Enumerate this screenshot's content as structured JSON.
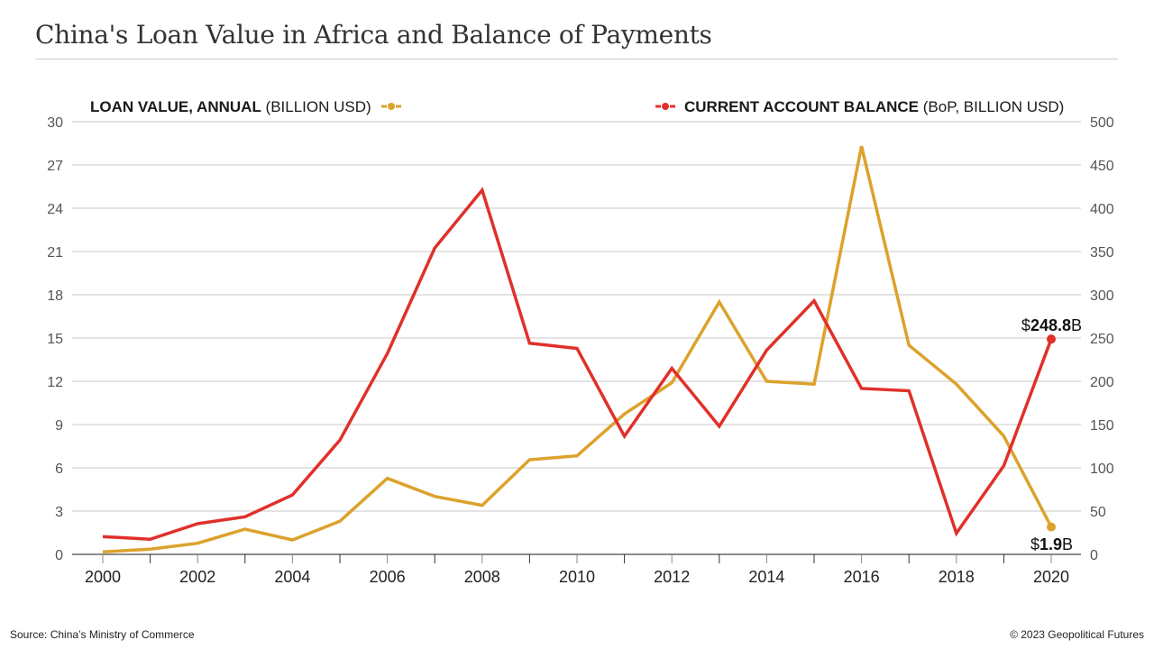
{
  "title": "China's Loan Value in Africa and Balance of Payments",
  "footer": {
    "source": "Source: China’s Ministry of Commerce",
    "copyright": "© 2023 Geopolitical Futures"
  },
  "colors": {
    "loan": "#dca22c",
    "balance": "#e0302a",
    "grid": "#c8c8c8",
    "axis": "#777777"
  },
  "chart_data": {
    "type": "line",
    "title": "China's Loan Value in Africa and Balance of Payments",
    "x": [
      2000,
      2001,
      2002,
      2003,
      2004,
      2005,
      2006,
      2007,
      2008,
      2009,
      2010,
      2011,
      2012,
      2013,
      2014,
      2015,
      2016,
      2017,
      2018,
      2019,
      2020
    ],
    "x_tick_labels": [
      "2000",
      "2002",
      "2004",
      "2006",
      "2008",
      "2010",
      "2012",
      "2014",
      "2016",
      "2018",
      "2020"
    ],
    "xlim": [
      2000,
      2020
    ],
    "left_axis": {
      "label_bold": "LOAN VALUE, ANNUAL",
      "label_rest": " (BILLION USD)",
      "ylim": [
        0,
        30
      ],
      "ticks": [
        "0",
        "3",
        "6",
        "9",
        "12",
        "15",
        "18",
        "21",
        "24",
        "27",
        "30"
      ]
    },
    "right_axis": {
      "label_bold": "CURRENT ACCOUNT BALANCE",
      "label_rest": " (BoP, BILLION USD)",
      "ylim": [
        0,
        500
      ],
      "ticks": [
        "0",
        "50",
        "100",
        "150",
        "200",
        "250",
        "300",
        "350",
        "400",
        "450",
        "500"
      ]
    },
    "grid": true,
    "series": [
      {
        "name": "LOAN VALUE, ANNUAL (BILLION USD)",
        "axis": "left",
        "color": "#dca22c",
        "values": [
          0.17,
          0.36,
          0.77,
          1.75,
          1.0,
          2.3,
          5.27,
          4.02,
          3.4,
          6.56,
          6.83,
          9.73,
          11.9,
          17.5,
          12.0,
          11.8,
          28.3,
          14.5,
          11.8,
          8.2,
          1.9
        ],
        "end_label": {
          "prefix": "$",
          "value": "1.9",
          "suffix": "B"
        }
      },
      {
        "name": "CURRENT ACCOUNT BALANCE (BoP, BILLION USD)",
        "axis": "right",
        "color": "#e0302a",
        "values": [
          20.5,
          17.4,
          35.4,
          43.4,
          68.7,
          132,
          232,
          354,
          421,
          244,
          238,
          136.5,
          215,
          148,
          236,
          293,
          191.7,
          189,
          24.3,
          102.4,
          248.8
        ],
        "end_label": {
          "prefix": "$",
          "value": "248.8",
          "suffix": "B"
        }
      }
    ]
  }
}
